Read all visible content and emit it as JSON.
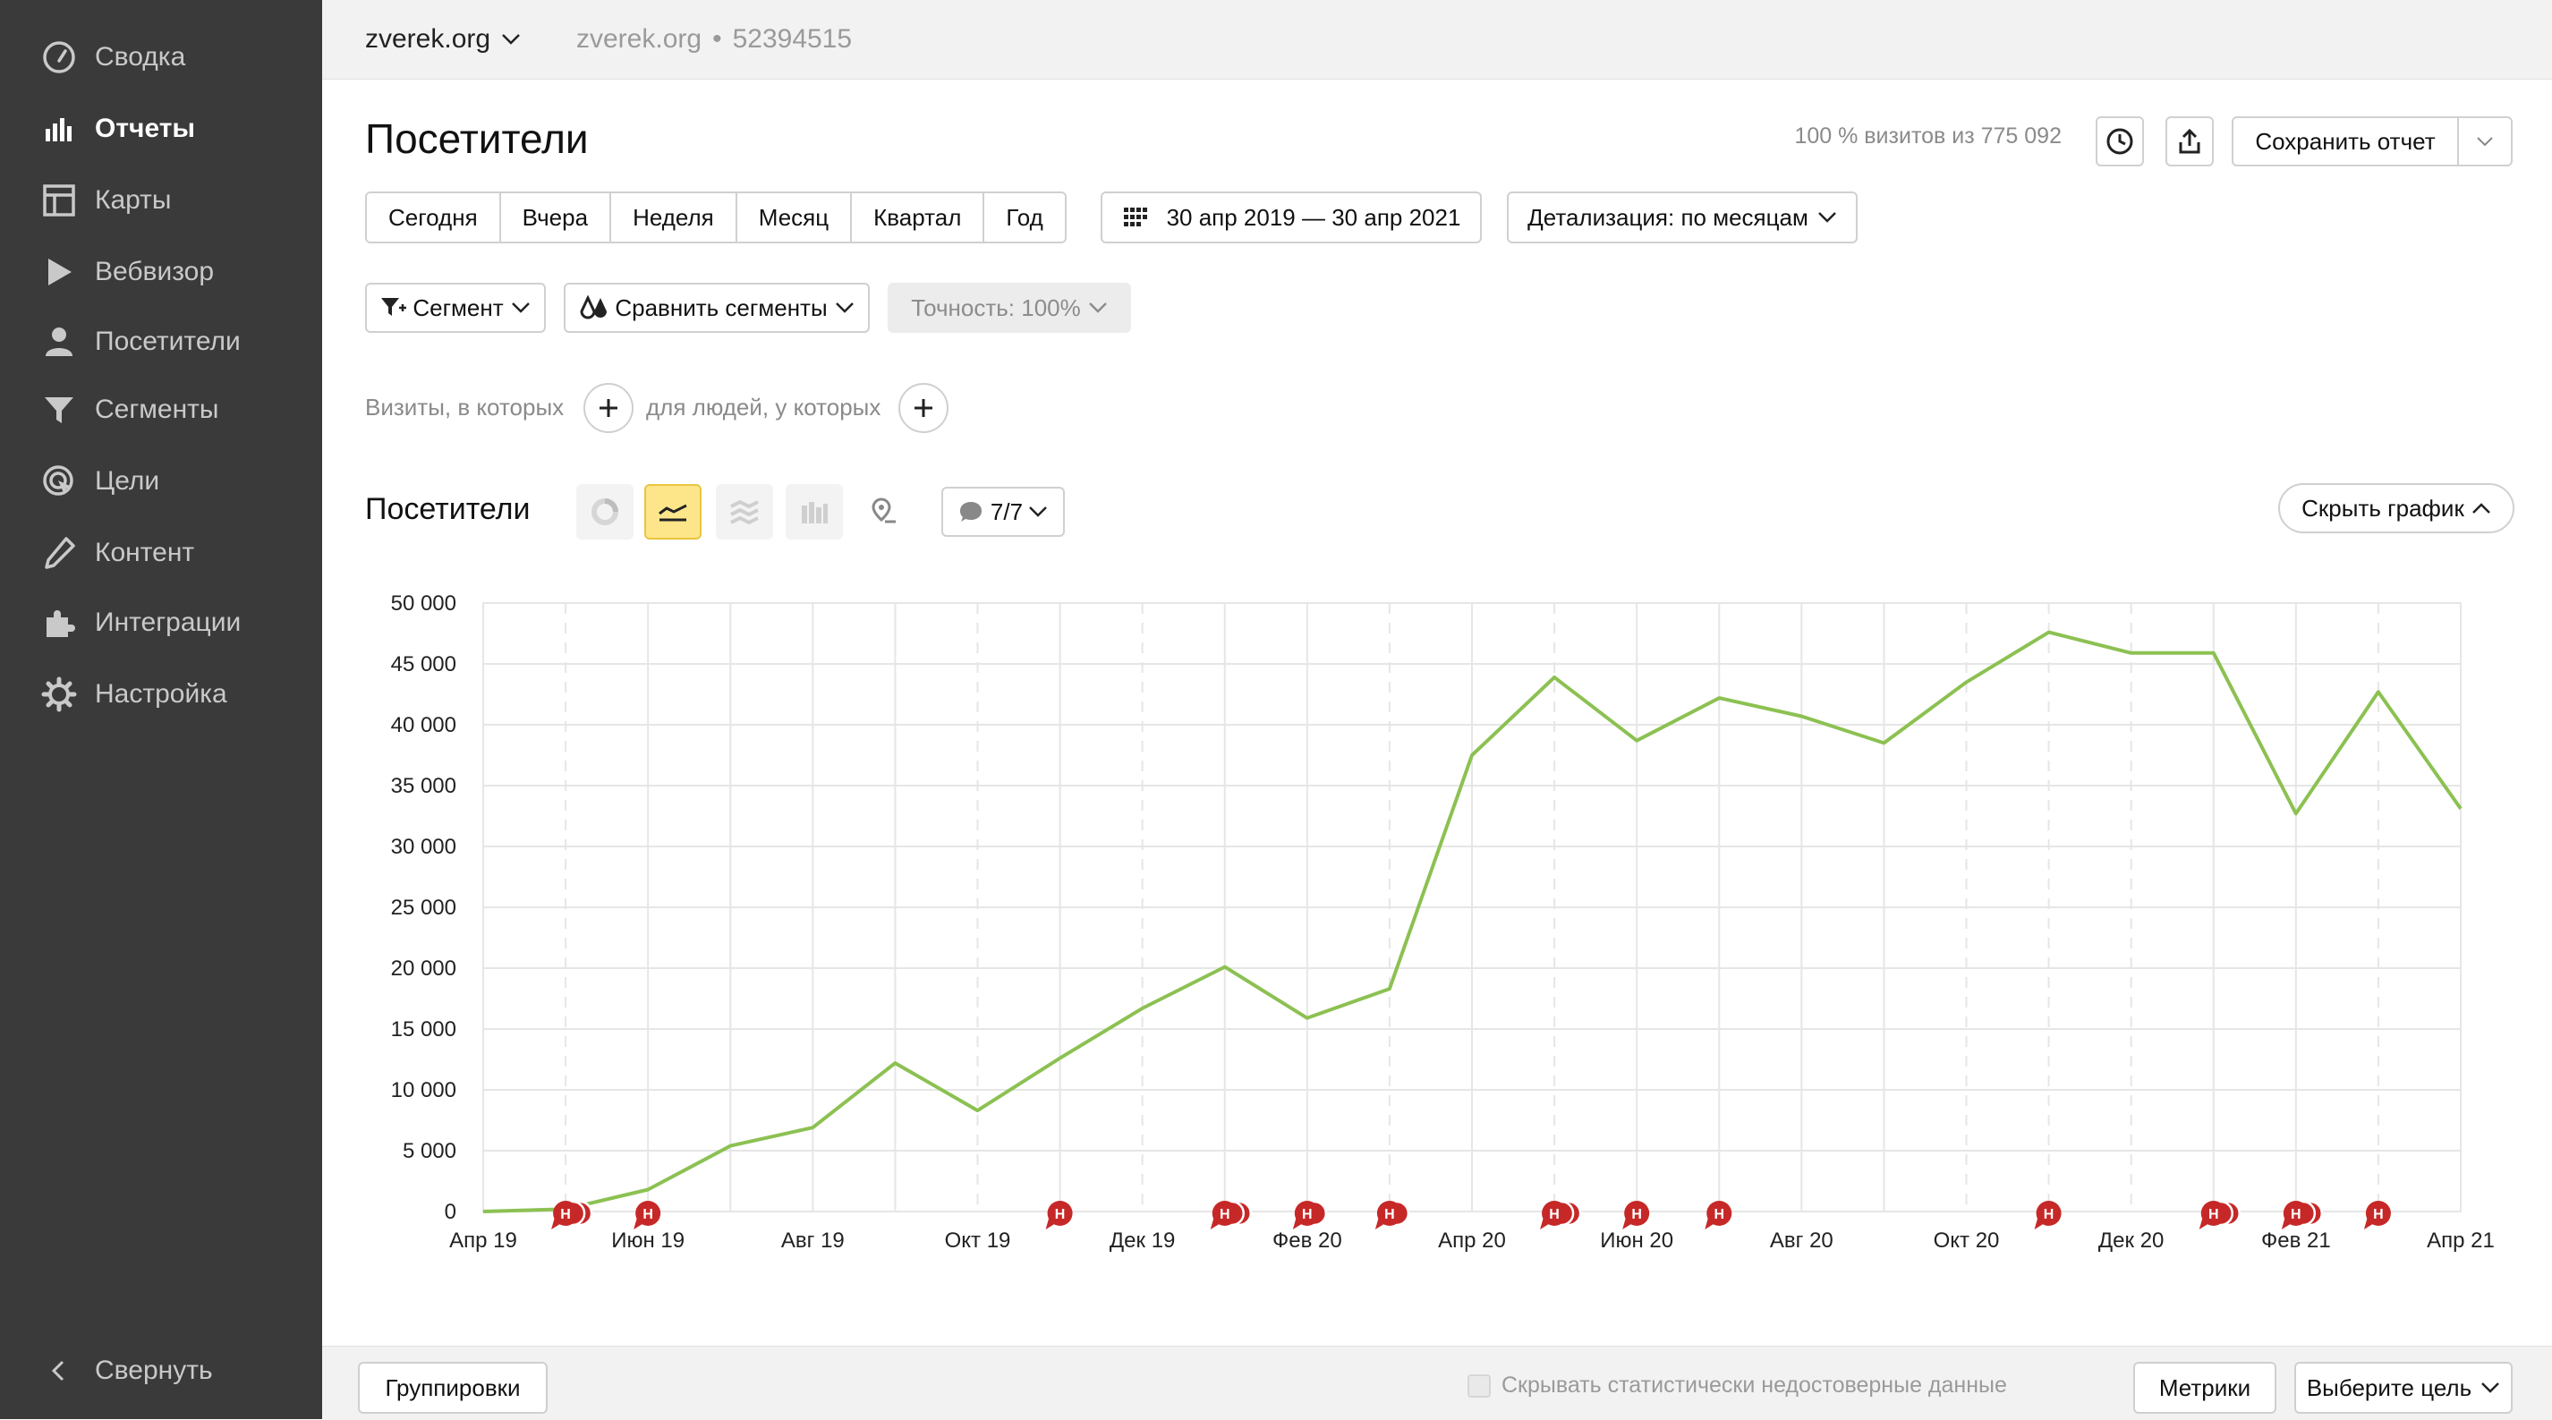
{
  "sidebar": {
    "items": [
      {
        "label": "Сводка",
        "icon": "dashboard-icon"
      },
      {
        "label": "Отчеты",
        "icon": "reports-icon",
        "active": true
      },
      {
        "label": "Карты",
        "icon": "maps-icon"
      },
      {
        "label": "Вебвизор",
        "icon": "play-icon"
      },
      {
        "label": "Посетители",
        "icon": "user-icon"
      },
      {
        "label": "Сегменты",
        "icon": "funnel-icon"
      },
      {
        "label": "Цели",
        "icon": "target-icon"
      },
      {
        "label": "Контент",
        "icon": "pencil-icon"
      },
      {
        "label": "Интеграции",
        "icon": "puzzle-icon"
      },
      {
        "label": "Настройка",
        "icon": "gear-icon"
      }
    ],
    "collapse_label": "Свернуть"
  },
  "topbar": {
    "site_name": "zverek.org",
    "site_secondary": "zverek.org",
    "separator": "•",
    "counter_id": "52394515"
  },
  "header": {
    "title": "Посетители",
    "visits_info": "100 % визитов из 775 092",
    "save_label": "Сохранить отчет"
  },
  "period": {
    "buttons": [
      "Сегодня",
      "Вчера",
      "Неделя",
      "Месяц",
      "Квартал",
      "Год"
    ],
    "date_range": "30 апр 2019 — 30 апр 2021",
    "detail": "Детализация: по месяцам"
  },
  "segments": {
    "segment_label": "Сегмент",
    "compare_label": "Сравнить сегменты",
    "accuracy_label": "Точность: 100%"
  },
  "filters": {
    "visits_label": "Визиты, в которых",
    "people_label": "для людей, у которых"
  },
  "chart_header": {
    "title": "Посетители",
    "notes_count": "7/7",
    "hide_label": "Скрыть график"
  },
  "chart_data": {
    "type": "line",
    "x": [
      "Апр 19",
      "Май 19",
      "Июн 19",
      "Июл 19",
      "Авг 19",
      "Сен 19",
      "Окт 19",
      "Ноя 19",
      "Дек 19",
      "Янв 20",
      "Фев 20",
      "Мар 20",
      "Апр 20",
      "Май 20",
      "Июн 20",
      "Июл 20",
      "Авг 20",
      "Сен 20",
      "Окт 20",
      "Ноя 20",
      "Дек 20",
      "Янв 21",
      "Фев 21",
      "Мар 21",
      "Апр 21"
    ],
    "tick_labels": [
      "Апр 19",
      "Июн 19",
      "Авг 19",
      "Окт 19",
      "Дек 19",
      "Фев 20",
      "Апр 20",
      "Июн 20",
      "Авг 20",
      "Окт 20",
      "Дек 20",
      "Фев 21",
      "Апр 21"
    ],
    "series": [
      {
        "values": [
          0,
          200,
          1800,
          5400,
          6900,
          12200,
          8300,
          12600,
          16700,
          20100,
          15900,
          18300,
          37500,
          43900,
          38700,
          42200,
          40700,
          38500,
          43500,
          47600,
          45900,
          45900,
          32700,
          42700,
          33100
        ],
        "color": "#8cc152"
      }
    ],
    "ylim": [
      0,
      50000
    ],
    "y_ticks": [
      "0",
      "5 000",
      "10 000",
      "15 000",
      "20 000",
      "25 000",
      "30 000",
      "35 000",
      "40 000",
      "45 000",
      "50 000"
    ],
    "grid": true,
    "dashed_months": [
      "Май 19",
      "Окт 19",
      "Дек 19",
      "Мар 20",
      "Май 20",
      "Окт 20",
      "Ноя 20",
      "Дек 20",
      "Мар 21"
    ],
    "note_markers": [
      {
        "month": "Май 19",
        "count": 3
      },
      {
        "month": "Июн 19",
        "count": 1
      },
      {
        "month": "Ноя 19",
        "count": 1
      },
      {
        "month": "Янв 20",
        "count": 3
      },
      {
        "month": "Фев 20",
        "count": 2
      },
      {
        "month": "Мар 20",
        "count": 2
      },
      {
        "month": "Май 20",
        "count": 3
      },
      {
        "month": "Июн 20",
        "count": 1
      },
      {
        "month": "Июл 20",
        "count": 1
      },
      {
        "month": "Ноя 20",
        "count": 1
      },
      {
        "month": "Янв 21",
        "count": 3
      },
      {
        "month": "Фев 21",
        "count": 3
      },
      {
        "month": "Мар 21",
        "count": 1
      }
    ],
    "note_letter": "Н"
  },
  "footer": {
    "groupings_label": "Группировки",
    "hide_data_label": "Скрывать статистически недостоверные данные",
    "metrics_label": "Метрики",
    "goal_label": "Выберите цель"
  },
  "colors": {
    "sidebar_bg": "#3a3a3a",
    "line": "#8cc152",
    "note_marker": "#c62828",
    "active_chart_type": "#fde68a"
  }
}
